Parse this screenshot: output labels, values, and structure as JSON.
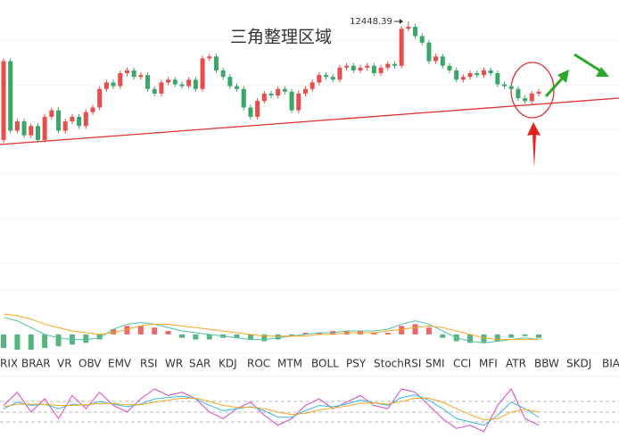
{
  "chart_data": [
    {
      "type": "candlestick",
      "title": "三角整理区域",
      "annotation": "12448.39",
      "up_color": "#e84c4c",
      "down_color": "#3aa66a",
      "open": [
        11170,
        12020,
        11270,
        11370,
        11220,
        11320,
        11170,
        11420,
        11490,
        11270,
        11370,
        11420,
        11320,
        11470,
        11520,
        11720,
        11790,
        11750,
        11890,
        11920,
        11850,
        11870,
        11720,
        11670,
        11790,
        11820,
        11770,
        11750,
        11820,
        11720,
        12050,
        12070,
        11920,
        11850,
        11750,
        11720,
        11520,
        11420,
        11590,
        11670,
        11650,
        11720,
        11690,
        11490,
        11670,
        11720,
        11790,
        11870,
        11850,
        11820,
        11950,
        11970,
        11920,
        11950,
        11970,
        11890,
        11950,
        11990,
        11970,
        12370,
        12390,
        12290,
        12220,
        12020,
        12070,
        11970,
        11920,
        11820,
        11850,
        11890,
        11870,
        11920,
        11890,
        11770,
        11750,
        11720,
        11620,
        11590,
        11670
      ],
      "high": [
        12050,
        12050,
        11400,
        11400,
        11350,
        11350,
        11450,
        11520,
        11520,
        11400,
        11450,
        11450,
        11500,
        11550,
        11750,
        11820,
        11820,
        11920,
        11950,
        11950,
        11900,
        11900,
        11750,
        11820,
        11850,
        11850,
        11800,
        11850,
        11850,
        12080,
        12100,
        12100,
        11950,
        11880,
        11780,
        11750,
        11550,
        11620,
        11700,
        11700,
        11750,
        11750,
        11720,
        11700,
        11750,
        11820,
        11900,
        11900,
        11880,
        11980,
        12000,
        12000,
        11980,
        12000,
        12000,
        11980,
        12020,
        12020,
        12400,
        12448.39,
        12420,
        12320,
        12250,
        12100,
        12100,
        12000,
        11950,
        11880,
        11920,
        11920,
        11950,
        11950,
        11920,
        11800,
        11780,
        11750,
        11650,
        11700,
        11720
      ],
      "low": [
        11140,
        11240,
        11240,
        11190,
        11190,
        11140,
        11140,
        11390,
        11240,
        11240,
        11340,
        11290,
        11290,
        11440,
        11490,
        11690,
        11720,
        11720,
        11860,
        11820,
        11820,
        11690,
        11640,
        11640,
        11760,
        11740,
        11720,
        11720,
        11690,
        11690,
        12020,
        11890,
        11820,
        11720,
        11690,
        11490,
        11390,
        11390,
        11560,
        11620,
        11620,
        11660,
        11460,
        11460,
        11640,
        11690,
        11760,
        11820,
        11790,
        11790,
        11920,
        11890,
        11890,
        11920,
        11860,
        11860,
        11920,
        11940,
        11940,
        12340,
        12260,
        12190,
        11990,
        11990,
        11940,
        11890,
        11790,
        11790,
        11820,
        11840,
        11840,
        11860,
        11740,
        11720,
        11690,
        11590,
        11560,
        11560,
        11640
      ],
      "close": [
        12020,
        11270,
        11370,
        11220,
        11320,
        11170,
        11420,
        11490,
        11270,
        11370,
        11420,
        11320,
        11470,
        11520,
        11720,
        11790,
        11750,
        11890,
        11920,
        11850,
        11870,
        11720,
        11670,
        11790,
        11820,
        11770,
        11750,
        11820,
        11720,
        12050,
        12070,
        11920,
        11850,
        11750,
        11720,
        11520,
        11420,
        11590,
        11670,
        11650,
        11720,
        11690,
        11490,
        11670,
        11720,
        11790,
        11870,
        11850,
        11820,
        11950,
        11970,
        11920,
        11950,
        11970,
        11890,
        11950,
        11990,
        11970,
        12370,
        12390,
        12290,
        12220,
        12020,
        12070,
        11970,
        11920,
        11820,
        11850,
        11890,
        11870,
        11920,
        11890,
        11770,
        11750,
        11720,
        11620,
        11590,
        11670,
        11690
      ]
    },
    {
      "type": "macd",
      "up_color": "#e84c4c",
      "down_color": "#3aa66a",
      "values": [
        -8,
        -9,
        -9,
        -8,
        -7,
        -6,
        -5,
        -3,
        3,
        5,
        5,
        4,
        2,
        -2,
        -3,
        -3,
        -2,
        -2,
        -3,
        -4,
        -3,
        -1,
        1,
        1,
        2,
        2,
        2,
        1,
        1,
        5,
        6,
        4,
        -2,
        -4,
        -5,
        -5,
        -4,
        -2,
        -1,
        -2
      ],
      "series": [
        {
          "color": "#4fc3a1",
          "values": [
            10,
            8,
            4,
            0,
            -2,
            -3,
            -3,
            -2,
            3,
            6,
            7,
            6,
            4,
            2,
            1,
            0,
            -1,
            -2,
            -3,
            -3,
            -2,
            -1,
            0,
            1,
            1,
            2,
            2,
            2,
            3,
            6,
            8,
            6,
            2,
            -2,
            -4,
            -5,
            -4,
            -3,
            -2,
            -3
          ]
        },
        {
          "color": "#f5a623",
          "values": [
            12,
            11,
            9,
            6,
            4,
            2,
            1,
            0,
            1,
            3,
            5,
            6,
            6,
            5,
            4,
            3,
            2,
            1,
            0,
            -1,
            -1,
            -1,
            -1,
            0,
            0,
            1,
            1,
            1,
            2,
            3,
            4,
            5,
            4,
            2,
            0,
            -2,
            -3,
            -3,
            -3,
            -3
          ]
        }
      ]
    },
    {
      "type": "line",
      "series": [
        {
          "color": "#d946c8",
          "values": [
            60,
            80,
            50,
            70,
            40,
            75,
            55,
            80,
            60,
            50,
            70,
            85,
            75,
            80,
            70,
            50,
            40,
            55,
            65,
            45,
            30,
            40,
            60,
            70,
            55,
            65,
            75,
            60,
            55,
            85,
            80,
            60,
            40,
            25,
            30,
            20,
            60,
            85,
            40,
            30
          ]
        },
        {
          "color": "#38b6e0",
          "values": [
            55,
            65,
            60,
            62,
            55,
            62,
            60,
            66,
            62,
            58,
            62,
            70,
            72,
            74,
            70,
            60,
            52,
            55,
            58,
            52,
            42,
            42,
            52,
            60,
            58,
            62,
            68,
            64,
            60,
            72,
            76,
            68,
            55,
            40,
            35,
            30,
            45,
            65,
            55,
            42
          ]
        },
        {
          "color": "#f5a623",
          "values": [
            58,
            62,
            62,
            62,
            60,
            60,
            61,
            63,
            63,
            61,
            61,
            65,
            68,
            71,
            71,
            66,
            60,
            57,
            57,
            55,
            50,
            46,
            48,
            53,
            56,
            59,
            63,
            64,
            62,
            66,
            71,
            71,
            65,
            55,
            46,
            38,
            40,
            50,
            54,
            50
          ]
        }
      ]
    }
  ],
  "tabs": [
    "RIX",
    "BRAR",
    "VR",
    "OBV",
    "EMV",
    "RSI",
    "WR",
    "SAR",
    "KDJ",
    "ROC",
    "MTM",
    "BOLL",
    "PSY",
    "StochRSI",
    "SMI",
    "CCI",
    "MFI",
    "ATR",
    "BBW",
    "SKDJ",
    "BIA"
  ]
}
